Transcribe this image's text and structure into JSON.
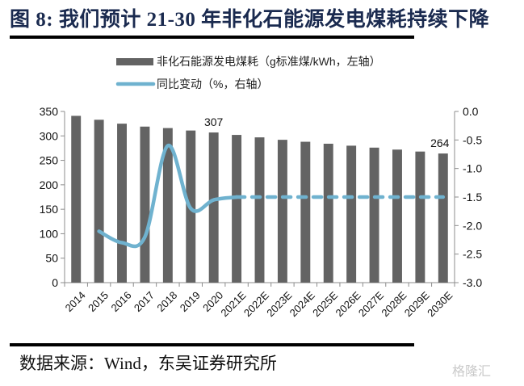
{
  "title": "图 8: 我们预计 21-30 年非化石能源发电煤耗持续下降",
  "source": "数据来源：Wind，东吴证券研究所",
  "watermark": "格隆汇",
  "colors": {
    "bar": "#636363",
    "line": "#6fb2cf",
    "axis": "#8c8c8c",
    "title": "#1a2a4f"
  },
  "chart_data": {
    "type": "bar",
    "title": "图 8: 我们预计 21-30 年非化石能源发电煤耗持续下降",
    "categories": [
      "2014",
      "2015",
      "2016",
      "2017",
      "2018",
      "2019",
      "2020",
      "2021E",
      "2022E",
      "2023E",
      "2024E",
      "2025E",
      "2026E",
      "2027E",
      "2028E",
      "2029E",
      "2030E"
    ],
    "series": [
      {
        "name": "非化石能源发电煤耗（g标准煤/kWh，左轴）",
        "type": "bar",
        "axis": "left",
        "values": [
          341,
          333,
          325,
          319,
          316,
          311,
          307,
          302,
          297,
          292,
          288,
          284,
          280,
          276,
          272,
          268,
          264
        ]
      },
      {
        "name": "同比变动（%，右轴）",
        "type": "line",
        "axis": "right",
        "values": [
          null,
          -2.1,
          -2.3,
          -2.2,
          -0.6,
          -1.7,
          -1.55,
          -1.5,
          -1.5,
          -1.5,
          -1.5,
          -1.5,
          -1.5,
          -1.5,
          -1.5,
          -1.5,
          -1.5
        ],
        "dashed_from_index": 7
      }
    ],
    "data_labels": [
      {
        "category": "2020",
        "text": "307"
      },
      {
        "category": "2030E",
        "text": "264"
      }
    ],
    "left_axis": {
      "ylim": [
        0,
        350
      ],
      "ticks": [
        "0",
        "50",
        "100",
        "150",
        "200",
        "250",
        "300",
        "350"
      ]
    },
    "right_axis": {
      "ylim": [
        -3.0,
        0.0
      ],
      "ticks": [
        "-3.0",
        "-2.5",
        "-2.0",
        "-1.5",
        "-1.0",
        "-0.5",
        "0.0"
      ]
    },
    "xlabel": "",
    "ylabel": "",
    "grid": false,
    "legend": {
      "position": "top",
      "entries": [
        "非化石能源发电煤耗（g标准煤/kWh，左轴）",
        "同比变动（%，右轴）"
      ]
    }
  }
}
